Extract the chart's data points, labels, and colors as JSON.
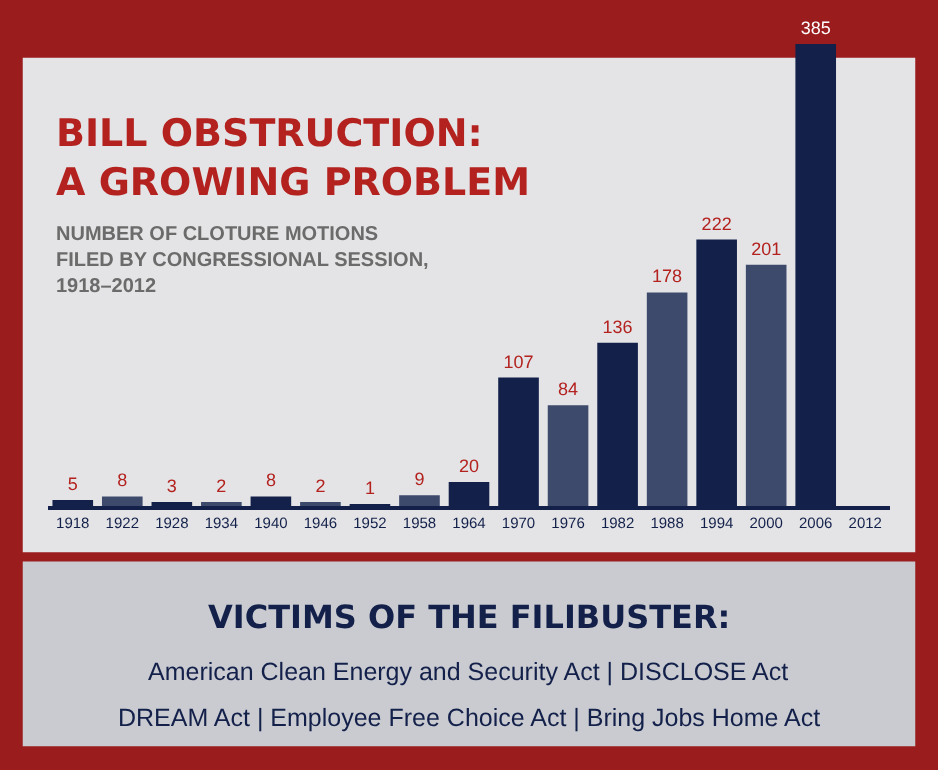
{
  "chart_data": {
    "type": "bar",
    "title": "BILL OBSTRUCTION:\nA GROWING PROBLEM",
    "subtitle": "NUMBER OF CLOTURE MOTIONS\nFILED BY CONGRESSIONAL SESSION,\n1918–2012",
    "categories": [
      "1918",
      "1922",
      "1928",
      "1934",
      "1940",
      "1946",
      "1952",
      "1958",
      "1964",
      "1970",
      "1976",
      "1982",
      "1988",
      "1994",
      "2000",
      "2006",
      "2012"
    ],
    "values": [
      5,
      8,
      3,
      2,
      8,
      2,
      1,
      9,
      20,
      107,
      84,
      136,
      178,
      222,
      201,
      385,
      null
    ],
    "colors": [
      "#13204a",
      "#3d4a6c",
      "#13204a",
      "#3d4a6c",
      "#13204a",
      "#3d4a6c",
      "#13204a",
      "#3d4a6c",
      "#13204a",
      "#13204a",
      "#3d4a6c",
      "#13204a",
      "#3d4a6c",
      "#13204a",
      "#3d4a6c",
      "#13204a",
      "#13204a"
    ],
    "data_labels": true,
    "grid": false,
    "annotations": [
      "VICTIMS OF THE FILIBUSTER:",
      "American Clean Energy and Security Act | DISCLOSE Act",
      "DREAM Act | Employee Free Choice Act | Bring Jobs Home Act"
    ]
  }
}
